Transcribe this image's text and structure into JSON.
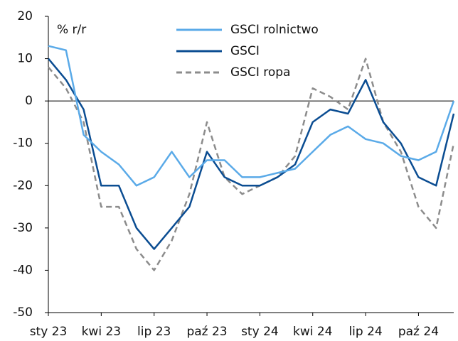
{
  "chart_data": {
    "type": "line",
    "y_label": "% r/r",
    "x": [
      "2023-01",
      "2023-02",
      "2023-03",
      "2023-04",
      "2023-05",
      "2023-06",
      "2023-07",
      "2023-08",
      "2023-09",
      "2023-10",
      "2023-11",
      "2023-12",
      "2024-01",
      "2024-02",
      "2024-03",
      "2024-04",
      "2024-05",
      "2024-06",
      "2024-07",
      "2024-08",
      "2024-09",
      "2024-10",
      "2024-11",
      "2024-12"
    ],
    "series": [
      {
        "name": "GSCI rolnictwo",
        "color": "#5aaae8",
        "dash": false,
        "values": [
          13,
          12,
          -8,
          -12,
          -15,
          -20,
          -18,
          -12,
          -18,
          -14,
          -14,
          -18,
          -18,
          -17,
          -16,
          -12,
          -8,
          -6,
          -9,
          -10,
          -13,
          -14,
          -12,
          0
        ]
      },
      {
        "name": "GSCI",
        "color": "#0b4d92",
        "dash": false,
        "values": [
          10,
          5,
          -2,
          -20,
          -20,
          -30,
          -35,
          -30,
          -25,
          -12,
          -18,
          -20,
          -20,
          -18,
          -15,
          -5,
          -2,
          -3,
          5,
          -5,
          -10,
          -18,
          -20,
          -3
        ]
      },
      {
        "name": "GSCI ropa",
        "color": "#8c8c8c",
        "dash": true,
        "values": [
          8,
          3,
          -5,
          -25,
          -25,
          -35,
          -40,
          -33,
          -22,
          -5,
          -18,
          -22,
          -20,
          -18,
          -13,
          3,
          1,
          -2,
          10,
          -5,
          -12,
          -25,
          -30,
          -10
        ]
      }
    ],
    "xlim": [
      "2023-01",
      "2024-12"
    ],
    "xticks": [
      {
        "value": "2023-01",
        "label": "sty 23"
      },
      {
        "value": "2023-04",
        "label": "kwi 23"
      },
      {
        "value": "2023-07",
        "label": "lip 23"
      },
      {
        "value": "2023-10",
        "label": "paź 23"
      },
      {
        "value": "2024-01",
        "label": "sty 24"
      },
      {
        "value": "2024-04",
        "label": "kwi 24"
      },
      {
        "value": "2024-07",
        "label": "lip 24"
      },
      {
        "value": "2024-10",
        "label": "paź 24"
      }
    ],
    "ylim": [
      -50,
      20
    ],
    "yticks": [
      20,
      10,
      0,
      -10,
      -20,
      -30,
      -40,
      -50
    ],
    "legend": "top"
  }
}
